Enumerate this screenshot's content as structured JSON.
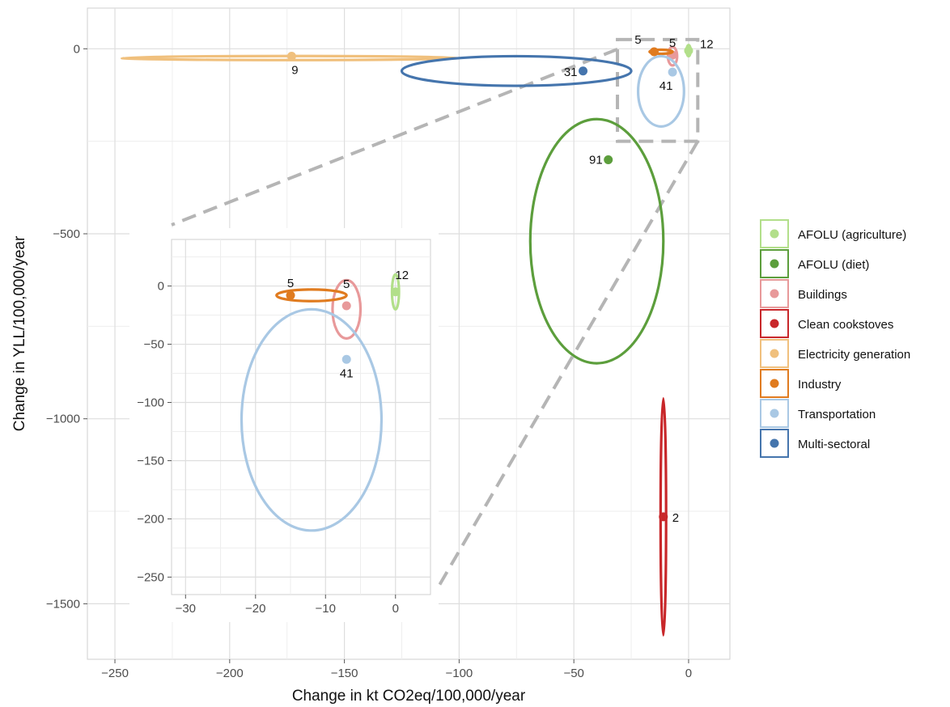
{
  "chart_data": {
    "type": "scatter",
    "xlabel": "Change in kt CO2eq/100,000/year",
    "ylabel": "Change in YLL/100,000/year",
    "grid": true,
    "legend_position": "right",
    "main": {
      "xlim": [
        -262,
        18
      ],
      "ylim": [
        -1650,
        110
      ],
      "xticks": [
        -250,
        -200,
        -150,
        -100,
        -50,
        0
      ],
      "yticks": [
        0,
        -500,
        -1000,
        -1500
      ],
      "xtick_labels": [
        "−250",
        "−200",
        "−150",
        "−100",
        "−50",
        "0"
      ],
      "ytick_labels": [
        "0",
        "−500",
        "−1000",
        "−1500"
      ]
    },
    "inset": {
      "xlim": [
        -32,
        5
      ],
      "ylim": [
        -265,
        40
      ],
      "xticks": [
        -30,
        -20,
        -10,
        0
      ],
      "yticks": [
        0,
        -50,
        -100,
        -150,
        -200,
        -250
      ],
      "xtick_labels": [
        "−30",
        "−20",
        "−10",
        "0"
      ],
      "ytick_labels": [
        "0",
        "−50",
        "−100",
        "−150",
        "−200",
        "−250"
      ],
      "zoom_box": {
        "x": [
          -31,
          4
        ],
        "y": [
          -250,
          25
        ]
      }
    },
    "series": [
      {
        "name": "AFOLU (agriculture)",
        "color": "#b2df8a",
        "x": 0,
        "y": -5,
        "n_label": "12",
        "ellipse": {
          "rx": 0.5,
          "ry": 15
        },
        "in_inset": true
      },
      {
        "name": "AFOLU (diet)",
        "color": "#5c9e3c",
        "x": -35,
        "y": -300,
        "n_label": "91",
        "ellipse": {
          "cx": -40,
          "cy": -520,
          "rx": 29,
          "ry": 330
        },
        "in_inset": false
      },
      {
        "name": "Buildings",
        "color": "#e8999a",
        "x": -7,
        "y": -17,
        "n_label": "5",
        "ellipse": {
          "cx": -7,
          "cy": -20,
          "rx": 2,
          "ry": 25
        },
        "in_inset": true
      },
      {
        "name": "Clean cookstoves",
        "color": "#c8272a",
        "x": -11,
        "y": -1265,
        "n_label": "2",
        "ellipse": {
          "cx": -11,
          "cy": -1265,
          "rx": 1.2,
          "ry": 320
        },
        "in_inset": false
      },
      {
        "name": "Electricity generation",
        "color": "#f0c07d",
        "x": -173,
        "y": -20,
        "n_label": "9",
        "ellipse": {
          "cx": -173,
          "cy": -25,
          "rx": 74,
          "ry": 4
        },
        "in_inset": false
      },
      {
        "name": "Industry",
        "color": "#e07b1f",
        "x": -15,
        "y": -8,
        "n_label": "5",
        "ellipse": {
          "cx": -12,
          "cy": -8,
          "rx": 5,
          "ry": 5
        },
        "in_inset": true
      },
      {
        "name": "Transportation",
        "color": "#a9c8e4",
        "x": -7,
        "y": -63,
        "n_label": "41",
        "ellipse": {
          "cx": -12,
          "cy": -115,
          "rx": 10,
          "ry": 95
        },
        "in_inset": true
      },
      {
        "name": "Multi-sectoral",
        "color": "#4575ad",
        "x": -46,
        "y": -60,
        "n_label": "31",
        "ellipse": {
          "cx": -75,
          "cy": -60,
          "rx": 50,
          "ry": 40
        },
        "in_inset": false
      }
    ]
  }
}
